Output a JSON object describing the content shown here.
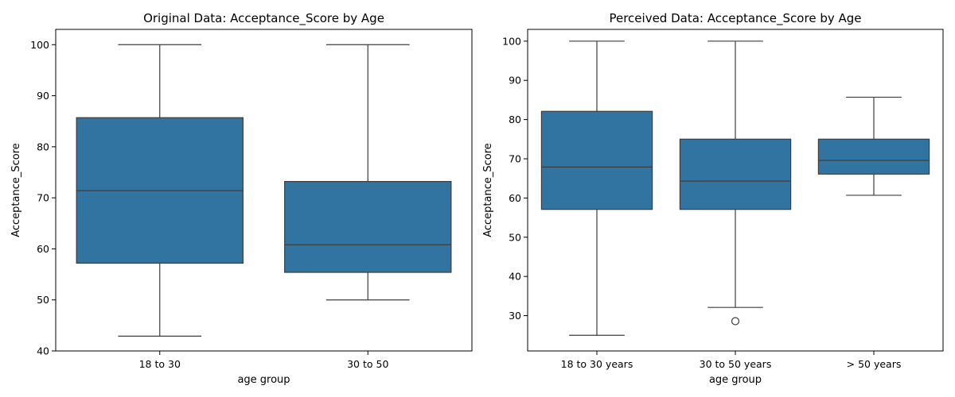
{
  "chart_data": [
    {
      "type": "box",
      "title": "Original Data: Acceptance_Score by Age",
      "xlabel": "age group",
      "ylabel": "Acceptance_Score",
      "ylim": [
        40,
        103
      ],
      "yticks": [
        40,
        50,
        60,
        70,
        80,
        90,
        100
      ],
      "categories": [
        "18 to 30",
        "30 to 50"
      ],
      "boxes": [
        {
          "min": 42.9,
          "q1": 57.2,
          "median": 71.4,
          "q3": 85.7,
          "max": 100,
          "outliers": []
        },
        {
          "min": 50.0,
          "q1": 55.4,
          "median": 60.8,
          "q3": 73.2,
          "max": 100,
          "outliers": []
        }
      ],
      "box_color": "#3274a1"
    },
    {
      "type": "box",
      "title": "Perceived Data: Acceptance_Score by Age",
      "xlabel": "age group",
      "ylabel": "Acceptance_Score",
      "ylim": [
        21,
        103
      ],
      "yticks": [
        30,
        40,
        50,
        60,
        70,
        80,
        90,
        100
      ],
      "categories": [
        "18 to 30 years",
        "30 to 50 years",
        "> 50 years"
      ],
      "boxes": [
        {
          "min": 25.0,
          "q1": 57.1,
          "median": 67.9,
          "q3": 82.1,
          "max": 100,
          "outliers": []
        },
        {
          "min": 32.1,
          "q1": 57.1,
          "median": 64.3,
          "q3": 75.0,
          "max": 100,
          "outliers": [
            28.6
          ]
        },
        {
          "min": 60.7,
          "q1": 66.1,
          "median": 69.6,
          "q3": 75.0,
          "max": 85.7,
          "outliers": []
        }
      ],
      "box_color": "#3274a1"
    }
  ]
}
